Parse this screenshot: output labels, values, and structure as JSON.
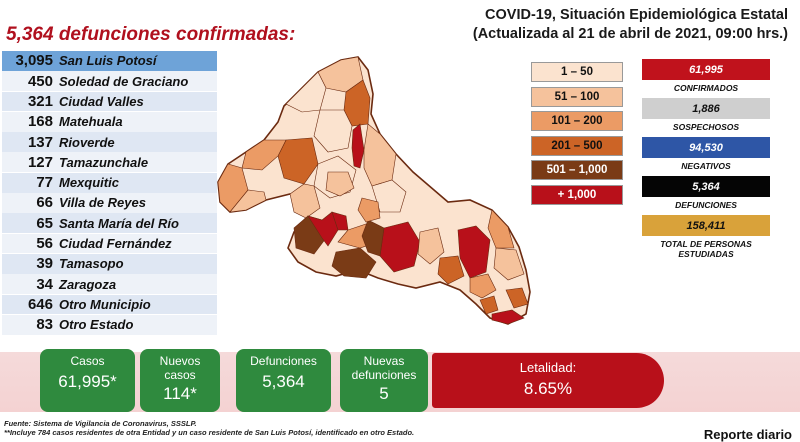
{
  "headline": "5,364 defunciones confirmadas:",
  "title": {
    "line1": "COVID-19, Situación Epidemiológica Estatal",
    "line2": "(Actualizada al 21 de abril de 2021, 09:00 hrs.)"
  },
  "municipalities": [
    {
      "count": "3,095",
      "name": "San Luis Potosí"
    },
    {
      "count": "450",
      "name": "Soledad de Graciano"
    },
    {
      "count": "321",
      "name": "Ciudad Valles"
    },
    {
      "count": "168",
      "name": "Matehuala"
    },
    {
      "count": "137",
      "name": "Rioverde"
    },
    {
      "count": "127",
      "name": "Tamazunchale"
    },
    {
      "count": "77",
      "name": "Mexquitic"
    },
    {
      "count": "66",
      "name": "Villa de Reyes"
    },
    {
      "count": "65",
      "name": "Santa María del Río"
    },
    {
      "count": "56",
      "name": "Ciudad Fernández"
    },
    {
      "count": "39",
      "name": "Tamasopo"
    },
    {
      "count": "34",
      "name": "Zaragoza"
    },
    {
      "count": "646",
      "name": "Otro Municipio"
    },
    {
      "count": "83",
      "name": "Otro Estado"
    }
  ],
  "legend": [
    {
      "label": "1 – 50",
      "color": "#fbe3cf",
      "text_color": "#111111"
    },
    {
      "label": "51 – 100",
      "color": "#f5c29c",
      "text_color": "#111111"
    },
    {
      "label": "101 – 200",
      "color": "#eb9b65",
      "text_color": "#111111"
    },
    {
      "label": "201 – 500",
      "color": "#cc6426",
      "text_color": "#111111"
    },
    {
      "label": "501 – 1,000",
      "color": "#7a3b16",
      "text_color": "#ffffff"
    },
    {
      "label": "+ 1,000",
      "color": "#b8101a",
      "text_color": "#ffffff"
    }
  ],
  "stats": [
    {
      "value": "61,995",
      "label": "CONFIRMADOS",
      "color": "#c0121c",
      "text_color": "#ffffff"
    },
    {
      "value": "1,886",
      "label": "SOSPECHOSOS",
      "color": "#cfcfcf",
      "text_color": "#111111"
    },
    {
      "value": "94,530",
      "label": "NEGATIVOS",
      "color": "#2e56a6",
      "text_color": "#ffffff"
    },
    {
      "value": "5,364",
      "label": "DEFUNCIONES",
      "color": "#050505",
      "text_color": "#ffffff"
    },
    {
      "value": "158,411",
      "label": "TOTAL DE PERSONAS ESTUDIADAS",
      "color": "#d9a23a",
      "text_color": "#111111"
    }
  ],
  "cards": [
    {
      "label": "Casos",
      "value": "61,995*"
    },
    {
      "label": "Nuevos casos",
      "value": "114*"
    },
    {
      "label": "Defunciones",
      "value": "5,364"
    },
    {
      "label": "Nuevas defunciones",
      "value": "5"
    }
  ],
  "letalidad": {
    "label": "Letalidad:",
    "value": "8.65%"
  },
  "source": {
    "line1": "Fuente: Sistema de Vigilancia de Coronavirus, SSSLP.",
    "line2": "**Incluye 784 casos residentes de otra Entidad y un caso residente de San Luis Potosí, identificado en otro Estado."
  },
  "daily_report": "Reporte diario"
}
